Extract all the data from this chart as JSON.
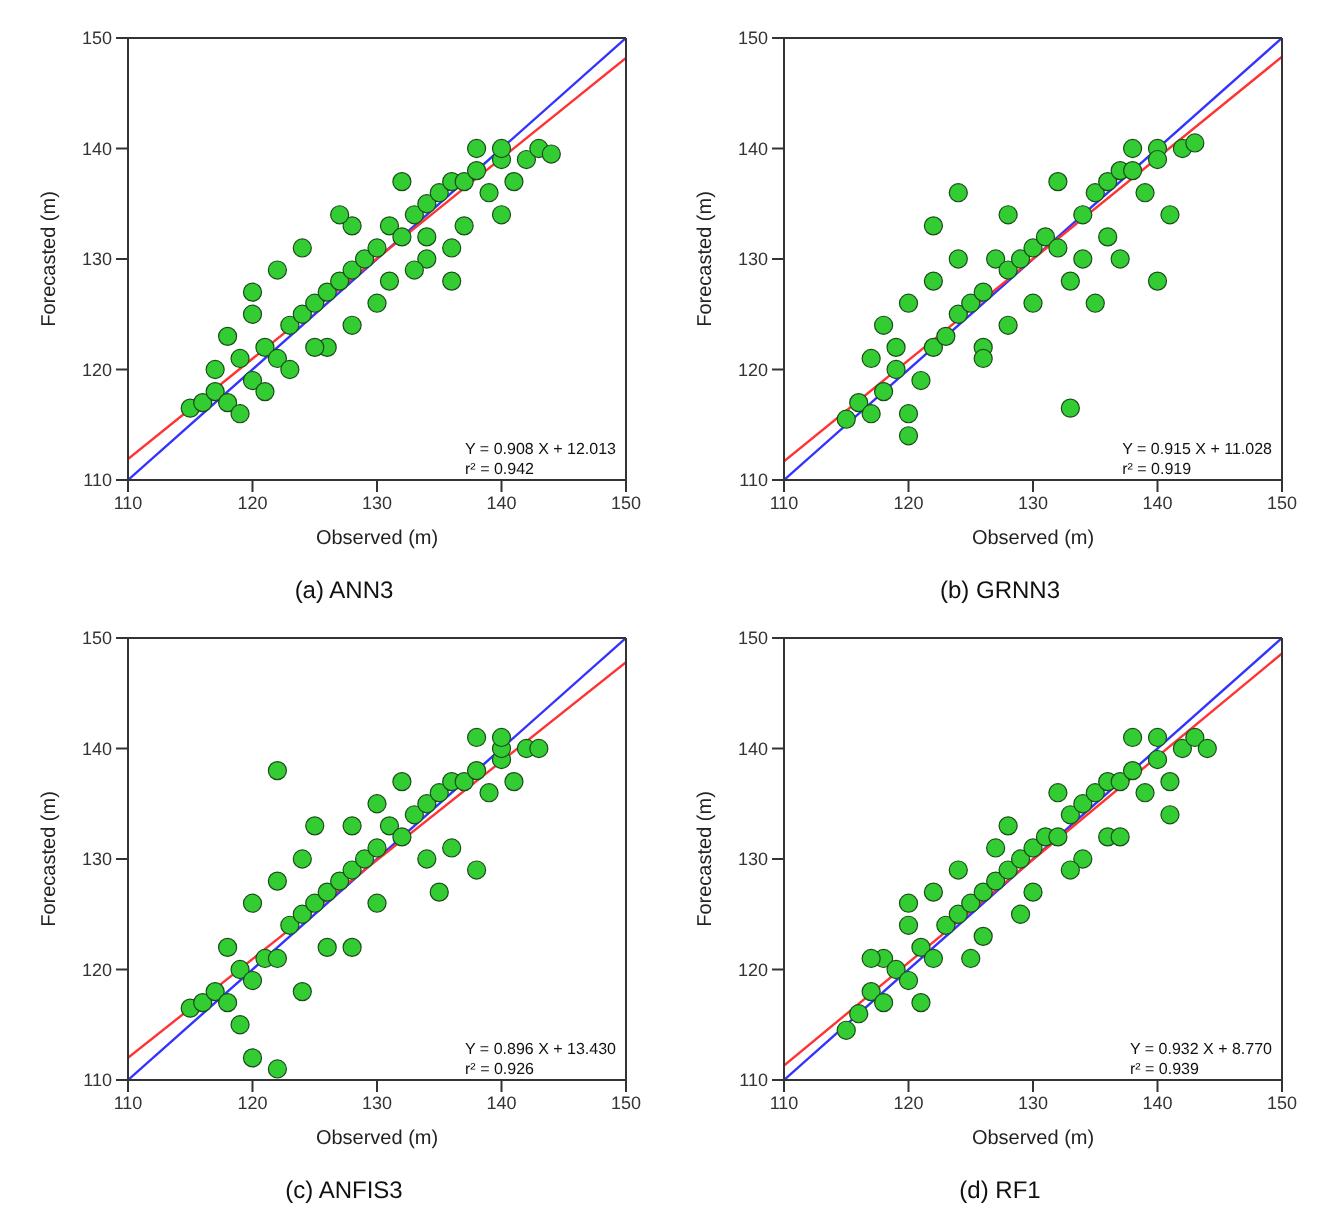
{
  "chart_data": [
    {
      "type": "scatter",
      "title": "(a)  ANN3",
      "xlabel": "Observed (m)",
      "ylabel": "Forecasted (m)",
      "xlim": [
        110,
        150
      ],
      "ylim": [
        110,
        150
      ],
      "xticks": [
        110,
        120,
        130,
        140,
        150
      ],
      "yticks": [
        110,
        120,
        130,
        140,
        150
      ],
      "grid": false,
      "legend": false,
      "marker": "circle",
      "line_style": "solid",
      "annotations": [
        "Y = 0.908 X + 12.013",
        "r² = 0.942"
      ],
      "series": [
        {
          "color": "#33cc33",
          "x": [
            115,
            116,
            117,
            118,
            118,
            119,
            120,
            120,
            121,
            122,
            122,
            123,
            124,
            124,
            125,
            126,
            126,
            127,
            128,
            128,
            129,
            130,
            130,
            131,
            132,
            132,
            133,
            134,
            134,
            135,
            136,
            136,
            137,
            138,
            138,
            139,
            140,
            140,
            141,
            142,
            143,
            144,
            119,
            121,
            125,
            128,
            131,
            134,
            137,
            140,
            123,
            127,
            117,
            120,
            133,
            136
          ],
          "values": [
            116.5,
            117,
            118,
            123,
            117,
            121,
            119,
            127,
            122,
            121,
            129,
            124,
            125,
            131,
            126,
            127,
            122,
            128,
            129,
            133,
            130,
            131,
            126,
            133,
            132,
            137,
            134,
            135,
            130,
            136,
            137,
            131,
            137,
            138,
            140,
            136,
            139,
            140,
            137,
            139,
            140,
            139.5,
            116,
            118,
            122,
            124,
            128,
            132,
            133,
            134,
            120,
            134,
            120,
            125,
            129,
            128
          ]
        },
        {
          "type": "line",
          "marker": "none",
          "color": "#3333ff",
          "x": [
            110,
            150
          ],
          "values": [
            110,
            150
          ]
        },
        {
          "type": "line",
          "marker": "none",
          "color": "#ff3333",
          "x": [
            110,
            150
          ],
          "values": [
            111.9,
            148.2
          ]
        }
      ]
    },
    {
      "type": "scatter",
      "title": "(b)  GRNN3",
      "xlabel": "Observed (m)",
      "ylabel": "Forecasted (m)",
      "xlim": [
        110,
        150
      ],
      "ylim": [
        110,
        150
      ],
      "xticks": [
        110,
        120,
        130,
        140,
        150
      ],
      "yticks": [
        110,
        120,
        130,
        140,
        150
      ],
      "grid": false,
      "legend": false,
      "marker": "circle",
      "line_style": "solid",
      "annotations": [
        "Y = 0.915 X + 11.028",
        "r² = 0.919"
      ],
      "series": [
        {
          "color": "#33cc33",
          "x": [
            115,
            116,
            117,
            118,
            118,
            119,
            120,
            120,
            121,
            122,
            122,
            123,
            124,
            124,
            125,
            126,
            126,
            127,
            128,
            128,
            129,
            130,
            130,
            131,
            132,
            132,
            133,
            134,
            134,
            135,
            136,
            136,
            137,
            138,
            138,
            139,
            140,
            140,
            141,
            142,
            143,
            120,
            133,
            122,
            124,
            126,
            128,
            135,
            137,
            140,
            117,
            119
          ],
          "values": [
            115.5,
            117,
            121,
            118,
            124,
            120,
            114,
            126,
            119,
            122,
            133,
            123,
            125,
            130,
            126,
            127,
            122,
            130,
            129,
            134,
            130,
            131,
            126,
            132,
            131,
            137,
            116.5,
            134,
            130,
            136,
            137,
            132,
            138,
            138,
            140,
            136,
            140,
            139,
            134,
            140,
            140.5,
            116,
            128,
            128,
            136,
            121,
            124,
            126,
            130,
            128,
            116,
            122
          ]
        },
        {
          "type": "line",
          "marker": "none",
          "color": "#3333ff",
          "x": [
            110,
            150
          ],
          "values": [
            110,
            150
          ]
        },
        {
          "type": "line",
          "marker": "none",
          "color": "#ff3333",
          "x": [
            110,
            150
          ],
          "values": [
            111.7,
            148.3
          ]
        }
      ]
    },
    {
      "type": "scatter",
      "title": "(c)  ANFIS3",
      "xlabel": "Observed (m)",
      "ylabel": "Forecasted (m)",
      "xlim": [
        110,
        150
      ],
      "ylim": [
        110,
        150
      ],
      "xticks": [
        110,
        120,
        130,
        140,
        150
      ],
      "yticks": [
        110,
        120,
        130,
        140,
        150
      ],
      "grid": false,
      "legend": false,
      "marker": "circle",
      "line_style": "solid",
      "annotations": [
        "Y = 0.896 X + 13.430",
        "r² = 0.926"
      ],
      "series": [
        {
          "color": "#33cc33",
          "x": [
            115,
            116,
            117,
            118,
            118,
            119,
            120,
            120,
            121,
            122,
            122,
            123,
            124,
            124,
            125,
            126,
            126,
            127,
            128,
            128,
            129,
            130,
            130,
            131,
            132,
            132,
            133,
            134,
            134,
            135,
            136,
            136,
            137,
            138,
            138,
            139,
            140,
            140,
            141,
            142,
            143,
            120,
            122,
            122,
            119,
            125,
            130,
            135,
            138,
            140,
            124,
            128
          ],
          "values": [
            116.5,
            117,
            118,
            122,
            117,
            120,
            119,
            126,
            121,
            121,
            128,
            124,
            125,
            130,
            126,
            127,
            122,
            128,
            129,
            133,
            130,
            131,
            126,
            133,
            132,
            137,
            134,
            135,
            130,
            136,
            137,
            131,
            137,
            138,
            141,
            136,
            139,
            140,
            137,
            140,
            140,
            112,
            111,
            138,
            115,
            133,
            135,
            127,
            129,
            141,
            118,
            122
          ]
        },
        {
          "type": "line",
          "marker": "none",
          "color": "#3333ff",
          "x": [
            110,
            150
          ],
          "values": [
            110,
            150
          ]
        },
        {
          "type": "line",
          "marker": "none",
          "color": "#ff3333",
          "x": [
            110,
            150
          ],
          "values": [
            112,
            147.8
          ]
        }
      ]
    },
    {
      "type": "scatter",
      "title": "(d)  RF1",
      "xlabel": "Observed (m)",
      "ylabel": "Forecasted (m)",
      "xlim": [
        110,
        150
      ],
      "ylim": [
        110,
        150
      ],
      "xticks": [
        110,
        120,
        130,
        140,
        150
      ],
      "yticks": [
        110,
        120,
        130,
        140,
        150
      ],
      "grid": false,
      "legend": false,
      "marker": "circle",
      "line_style": "solid",
      "annotations": [
        "Y = 0.932 X + 8.770",
        "r² = 0.939"
      ],
      "series": [
        {
          "color": "#33cc33",
          "x": [
            115,
            116,
            117,
            118,
            118,
            119,
            120,
            120,
            121,
            122,
            122,
            123,
            124,
            124,
            125,
            126,
            126,
            127,
            128,
            128,
            129,
            130,
            130,
            131,
            132,
            132,
            133,
            134,
            134,
            135,
            136,
            136,
            137,
            138,
            138,
            139,
            140,
            140,
            141,
            142,
            143,
            144,
            117,
            121,
            125,
            129,
            133,
            137,
            141,
            120,
            127
          ],
          "values": [
            114.5,
            116,
            118,
            121,
            117,
            120,
            119,
            124,
            122,
            121,
            127,
            124,
            125,
            129,
            126,
            127,
            123,
            128,
            129,
            133,
            130,
            131,
            127,
            132,
            132,
            136,
            134,
            135,
            130,
            136,
            137,
            132,
            137,
            138,
            141,
            136,
            139,
            141,
            137,
            140,
            141,
            140,
            121,
            117,
            121,
            125,
            129,
            132,
            134,
            126,
            131
          ]
        },
        {
          "type": "line",
          "marker": "none",
          "color": "#3333ff",
          "x": [
            110,
            150
          ],
          "values": [
            110,
            150
          ]
        },
        {
          "type": "line",
          "marker": "none",
          "color": "#ff3333",
          "x": [
            110,
            150
          ],
          "values": [
            111.3,
            148.6
          ]
        }
      ]
    }
  ]
}
